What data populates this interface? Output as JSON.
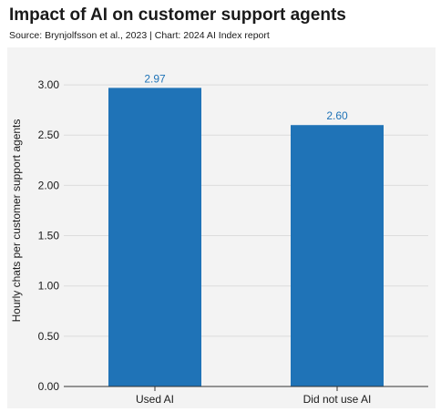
{
  "header": {
    "title": "Impact of AI on customer support agents",
    "subtitle": "Source: Brynjolfsson et al., 2023 | Chart: 2024 AI Index report"
  },
  "chart_data": {
    "type": "bar",
    "categories": [
      "Used AI",
      "Did not use AI"
    ],
    "values": [
      2.97,
      2.6
    ],
    "value_labels": [
      "2.97",
      "2.60"
    ],
    "title": "Impact of AI on customer support agents",
    "subtitle": "Source: Brynjolfsson et al., 2023 | Chart: 2024 AI Index report",
    "xlabel": "",
    "ylabel": "Hourly chats per customer support agents",
    "ylim": [
      0,
      3.3
    ],
    "yticks": [
      0,
      0.5,
      1.0,
      1.5,
      2.0,
      2.5,
      3.0
    ],
    "ytick_labels": [
      "0.00",
      "0.50",
      "1.00",
      "1.50",
      "2.00",
      "2.50",
      "3.00"
    ],
    "grid": true,
    "legend": "none",
    "colors": {
      "bar": "#1f73b7",
      "value_label": "#1f73b7",
      "grid": "#dcdcdc",
      "panel": "#f3f3f3"
    }
  }
}
